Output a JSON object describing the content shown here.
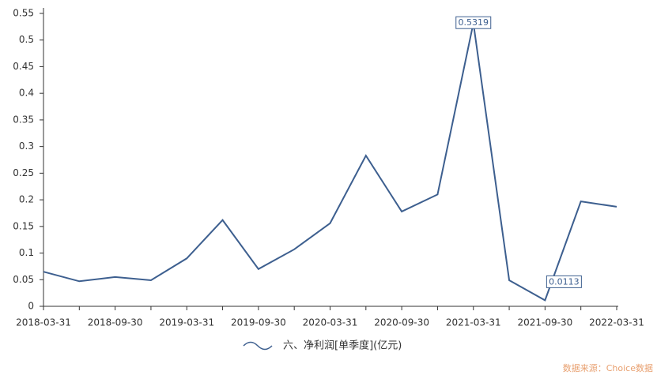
{
  "chart_data": {
    "type": "line",
    "categories": [
      "2018-03-31",
      null,
      "2018-09-30",
      null,
      "2019-03-31",
      null,
      "2019-09-30",
      null,
      "2020-03-31",
      null,
      "2020-09-30",
      null,
      "2021-03-31",
      null,
      "2021-09-30",
      null,
      "2022-03-31"
    ],
    "series": [
      {
        "name": "六、净利润[单季度](亿元)",
        "color": "#3d5f8f",
        "values": [
          0.065,
          0.047,
          0.055,
          0.049,
          0.09,
          0.162,
          0.07,
          0.107,
          0.156,
          0.283,
          0.178,
          0.21,
          0.5319,
          0.049,
          0.0113,
          0.197,
          0.187
        ]
      }
    ],
    "labeled_points": [
      12,
      14
    ],
    "ylim": [
      0,
      0.55
    ],
    "yticks": [
      0,
      0.05,
      0.1,
      0.15,
      0.2,
      0.25,
      0.3,
      0.35,
      0.4,
      0.45,
      0.5,
      0.55
    ],
    "grid": false,
    "legend": "bottom",
    "source": "数据来源：Choice数据"
  }
}
